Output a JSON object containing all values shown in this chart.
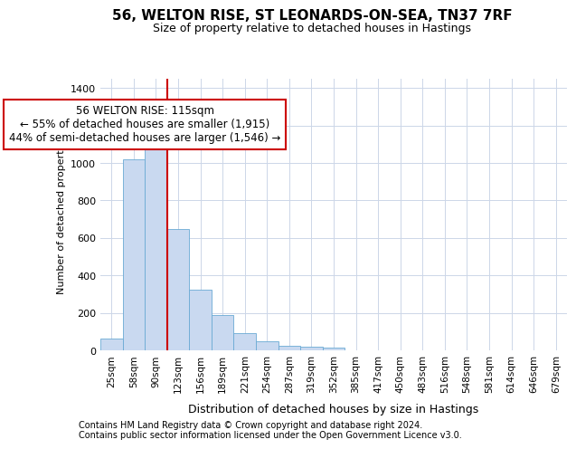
{
  "title1": "56, WELTON RISE, ST LEONARDS-ON-SEA, TN37 7RF",
  "title2": "Size of property relative to detached houses in Hastings",
  "xlabel": "Distribution of detached houses by size in Hastings",
  "ylabel": "Number of detached properties",
  "footnote1": "Contains HM Land Registry data © Crown copyright and database right 2024.",
  "footnote2": "Contains public sector information licensed under the Open Government Licence v3.0.",
  "annotation_line1": "56 WELTON RISE: 115sqm",
  "annotation_line2": "← 55% of detached houses are smaller (1,915)",
  "annotation_line3": "44% of semi-detached houses are larger (1,546) →",
  "bar_labels": [
    "25sqm",
    "58sqm",
    "90sqm",
    "123sqm",
    "156sqm",
    "189sqm",
    "221sqm",
    "254sqm",
    "287sqm",
    "319sqm",
    "352sqm",
    "385sqm",
    "417sqm",
    "450sqm",
    "483sqm",
    "516sqm",
    "548sqm",
    "581sqm",
    "614sqm",
    "646sqm",
    "679sqm"
  ],
  "bar_values": [
    62,
    1020,
    1095,
    650,
    325,
    190,
    90,
    48,
    25,
    20,
    15,
    0,
    0,
    0,
    0,
    0,
    0,
    0,
    0,
    0,
    0
  ],
  "bar_color": "#c9d9f0",
  "bar_edge_color": "#6aaad4",
  "red_line_color": "#cc0000",
  "annotation_box_color": "#cc0000",
  "background_color": "#ffffff",
  "grid_color": "#ccd6e8",
  "ylim": [
    0,
    1450
  ],
  "yticks": [
    0,
    200,
    400,
    600,
    800,
    1000,
    1200,
    1400
  ],
  "title1_fontsize": 11,
  "title2_fontsize": 9,
  "ylabel_fontsize": 8,
  "xlabel_fontsize": 9,
  "tick_fontsize": 8,
  "annot_fontsize": 8.5,
  "footnote_fontsize": 7
}
